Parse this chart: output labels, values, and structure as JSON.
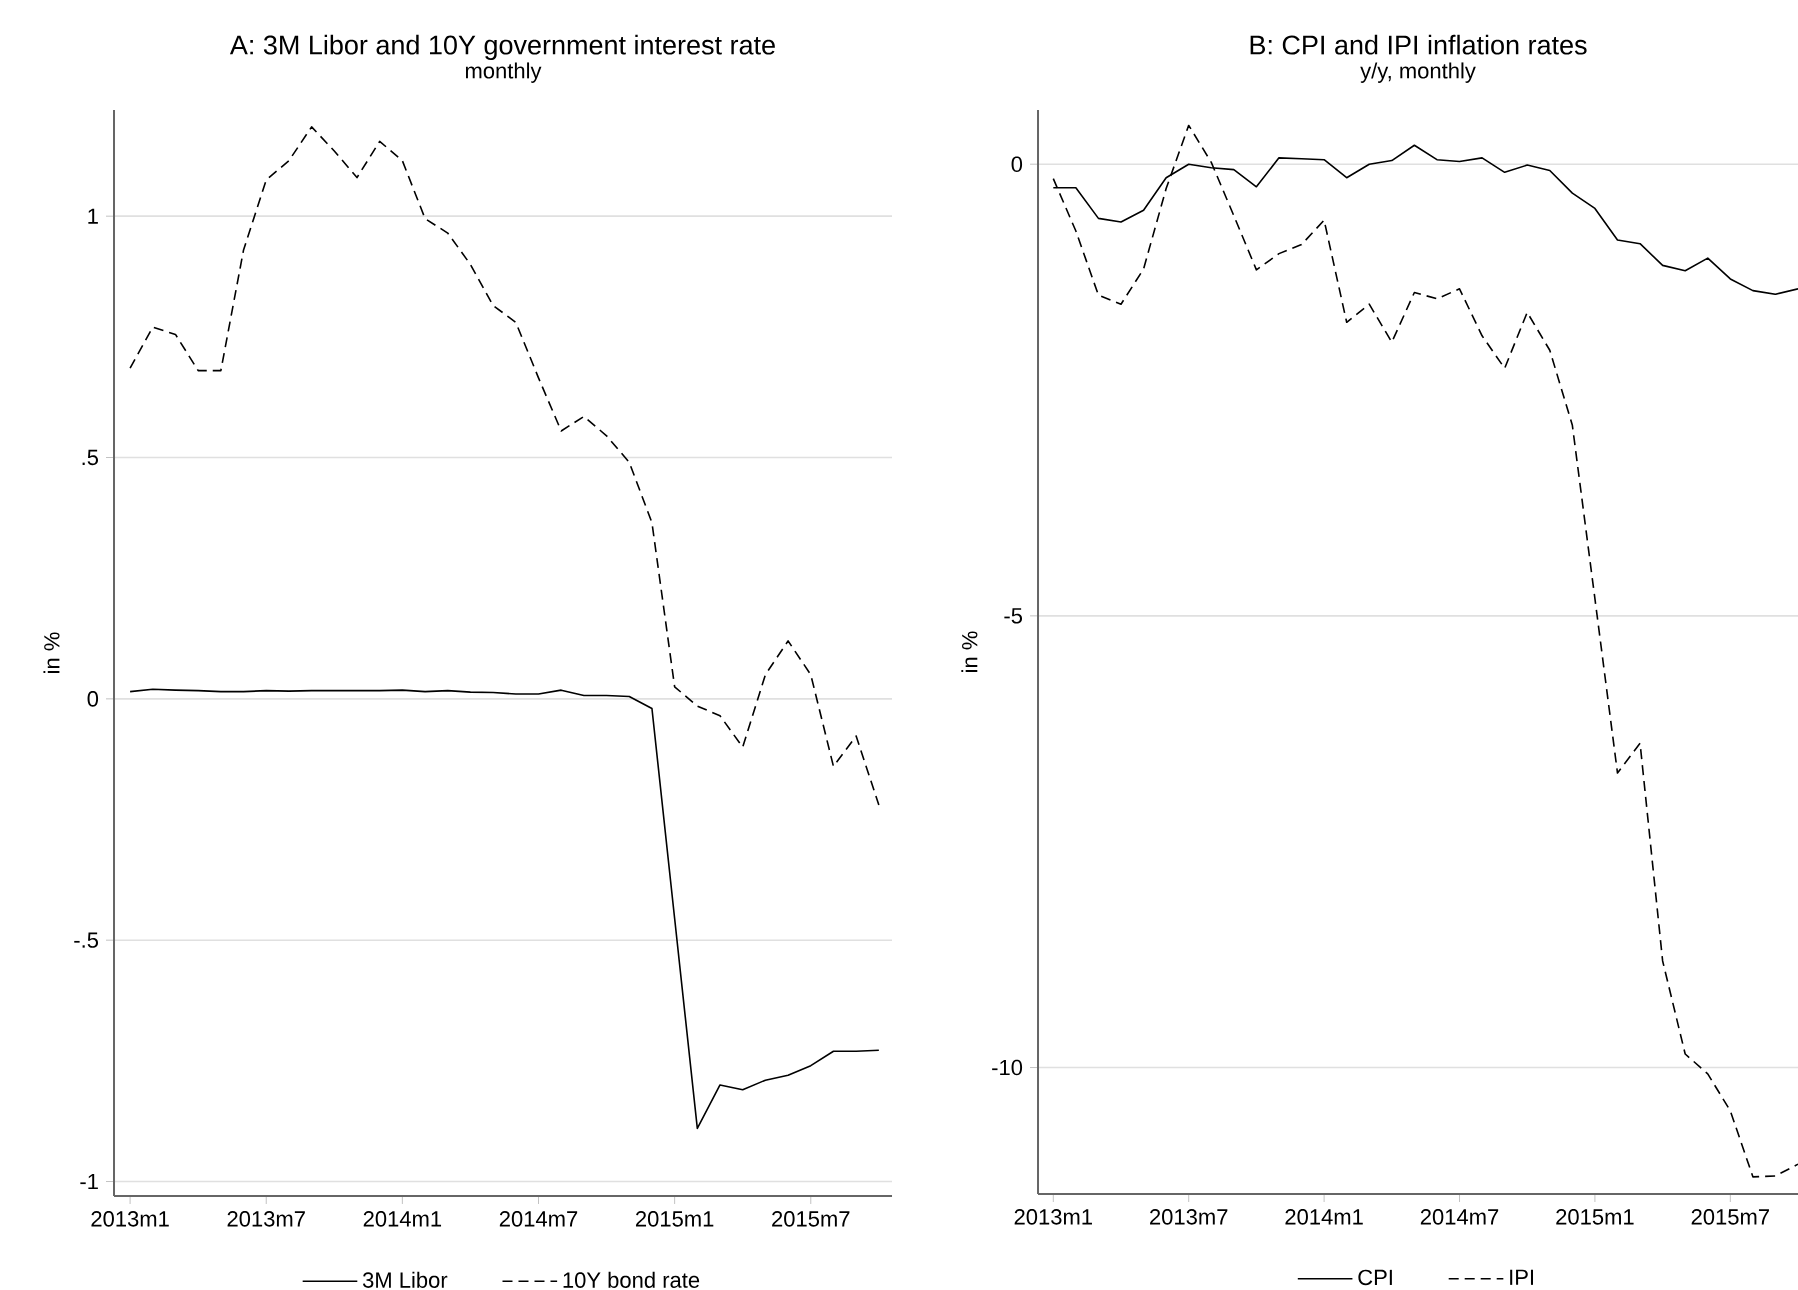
{
  "chart_data": [
    {
      "type": "line",
      "title": "A: 3M Libor and 10Y government interest rate",
      "subtitle": "monthly",
      "ylabel": "in %",
      "x": [
        "2013-01",
        "2013-02",
        "2013-03",
        "2013-04",
        "2013-05",
        "2013-06",
        "2013-07",
        "2013-08",
        "2013-09",
        "2013-10",
        "2013-11",
        "2013-12",
        "2014-01",
        "2014-02",
        "2014-03",
        "2014-04",
        "2014-05",
        "2014-06",
        "2014-07",
        "2014-08",
        "2014-09",
        "2014-10",
        "2014-11",
        "2014-12",
        "2015-01",
        "2015-02",
        "2015-03",
        "2015-04",
        "2015-05",
        "2015-06",
        "2015-07",
        "2015-08",
        "2015-09",
        "2015-10"
      ],
      "xlim": [
        "2012-12-10",
        "2015-10-19"
      ],
      "xticks": [
        {
          "value": "2013-01",
          "label": "2013m1"
        },
        {
          "value": "2013-07",
          "label": "2013m7"
        },
        {
          "value": "2014-01",
          "label": "2014m1"
        },
        {
          "value": "2014-07",
          "label": "2014m7"
        },
        {
          "value": "2015-01",
          "label": "2015m1"
        },
        {
          "value": "2015-07",
          "label": "2015m7"
        }
      ],
      "ylim": [
        -1.03,
        1.22
      ],
      "yticks": [
        {
          "value": -1,
          "label": "-1"
        },
        {
          "value": -0.5,
          "label": "-.5"
        },
        0,
        {
          "value": 0.5,
          "label": ".5"
        },
        1
      ],
      "grid": "y",
      "legend": "bottom",
      "series": [
        {
          "name": "3M Libor",
          "color": "#000000",
          "line_style": "solid",
          "values": [
            0.015,
            0.02,
            0.018,
            0.017,
            0.015,
            0.015,
            0.017,
            0.016,
            0.017,
            0.017,
            0.017,
            0.017,
            0.018,
            0.015,
            0.017,
            0.014,
            0.013,
            0.01,
            0.01,
            0.018,
            0.007,
            0.007,
            0.005,
            -0.02,
            -0.455,
            -0.89,
            -0.8,
            -0.81,
            -0.79,
            -0.78,
            -0.76,
            -0.73,
            -0.73,
            -0.728
          ]
        },
        {
          "name": "10Y bond rate",
          "color": "#000000",
          "line_style": "dashed",
          "values": [
            0.685,
            0.77,
            0.755,
            0.68,
            0.68,
            0.93,
            1.075,
            1.115,
            1.185,
            1.135,
            1.08,
            1.155,
            1.115,
            0.995,
            0.965,
            0.9,
            0.815,
            0.78,
            0.665,
            0.555,
            0.585,
            0.545,
            0.49,
            0.365,
            0.025,
            -0.015,
            -0.035,
            -0.1,
            0.05,
            0.12,
            0.05,
            -0.14,
            -0.077,
            -0.22
          ]
        }
      ]
    },
    {
      "type": "line",
      "title": "B: CPI and IPI inflation rates",
      "subtitle": "y/y, monthly",
      "ylabel": "in %",
      "x": [
        "2013-01",
        "2013-02",
        "2013-03",
        "2013-04",
        "2013-05",
        "2013-06",
        "2013-07",
        "2013-08",
        "2013-09",
        "2013-10",
        "2013-11",
        "2013-12",
        "2014-01",
        "2014-02",
        "2014-03",
        "2014-04",
        "2014-05",
        "2014-06",
        "2014-07",
        "2014-08",
        "2014-09",
        "2014-10",
        "2014-11",
        "2014-12",
        "2015-01",
        "2015-02",
        "2015-03",
        "2015-04",
        "2015-05",
        "2015-06",
        "2015-07",
        "2015-08",
        "2015-09",
        "2015-10"
      ],
      "xlim": [
        "2012-12-11",
        "2015-10-01"
      ],
      "xticks": [
        {
          "value": "2013-01",
          "label": "2013m1"
        },
        {
          "value": "2013-07",
          "label": "2013m7"
        },
        {
          "value": "2014-01",
          "label": "2014m1"
        },
        {
          "value": "2014-07",
          "label": "2014m7"
        },
        {
          "value": "2015-01",
          "label": "2015m1"
        },
        {
          "value": "2015-07",
          "label": "2015m7"
        }
      ],
      "ylim": [
        -11.4,
        0.6
      ],
      "yticks": [
        -10,
        -5,
        0
      ],
      "grid": "y",
      "legend": "bottom",
      "series": [
        {
          "name": "CPI",
          "color": "#000000",
          "line_style": "solid",
          "values": [
            -0.26,
            -0.26,
            -0.6,
            -0.64,
            -0.51,
            -0.15,
            0,
            -0.04,
            -0.06,
            -0.25,
            0.07,
            0.06,
            0.05,
            -0.15,
            0,
            0.04,
            0.21,
            0.05,
            0.03,
            0.07,
            -0.09,
            -0.01,
            -0.07,
            -0.32,
            -0.49,
            -0.84,
            -0.88,
            -1.12,
            -1.18,
            -1.04,
            -1.27,
            -1.4,
            -1.44,
            -1.38
          ]
        },
        {
          "name": "IPI",
          "color": "#000000",
          "line_style": "dashed",
          "values": [
            -0.16,
            -0.74,
            -1.45,
            -1.55,
            -1.16,
            -0.27,
            0.43,
            0.02,
            -0.57,
            -1.17,
            -0.99,
            -0.89,
            -0.62,
            -1.75,
            -1.55,
            -1.97,
            -1.42,
            -1.49,
            -1.38,
            -1.9,
            -2.26,
            -1.64,
            -2.06,
            -2.89,
            -4.81,
            -6.74,
            -6.41,
            -8.82,
            -9.85,
            -10.07,
            -10.48,
            -11.21,
            -11.2,
            -11.07
          ]
        }
      ]
    }
  ]
}
